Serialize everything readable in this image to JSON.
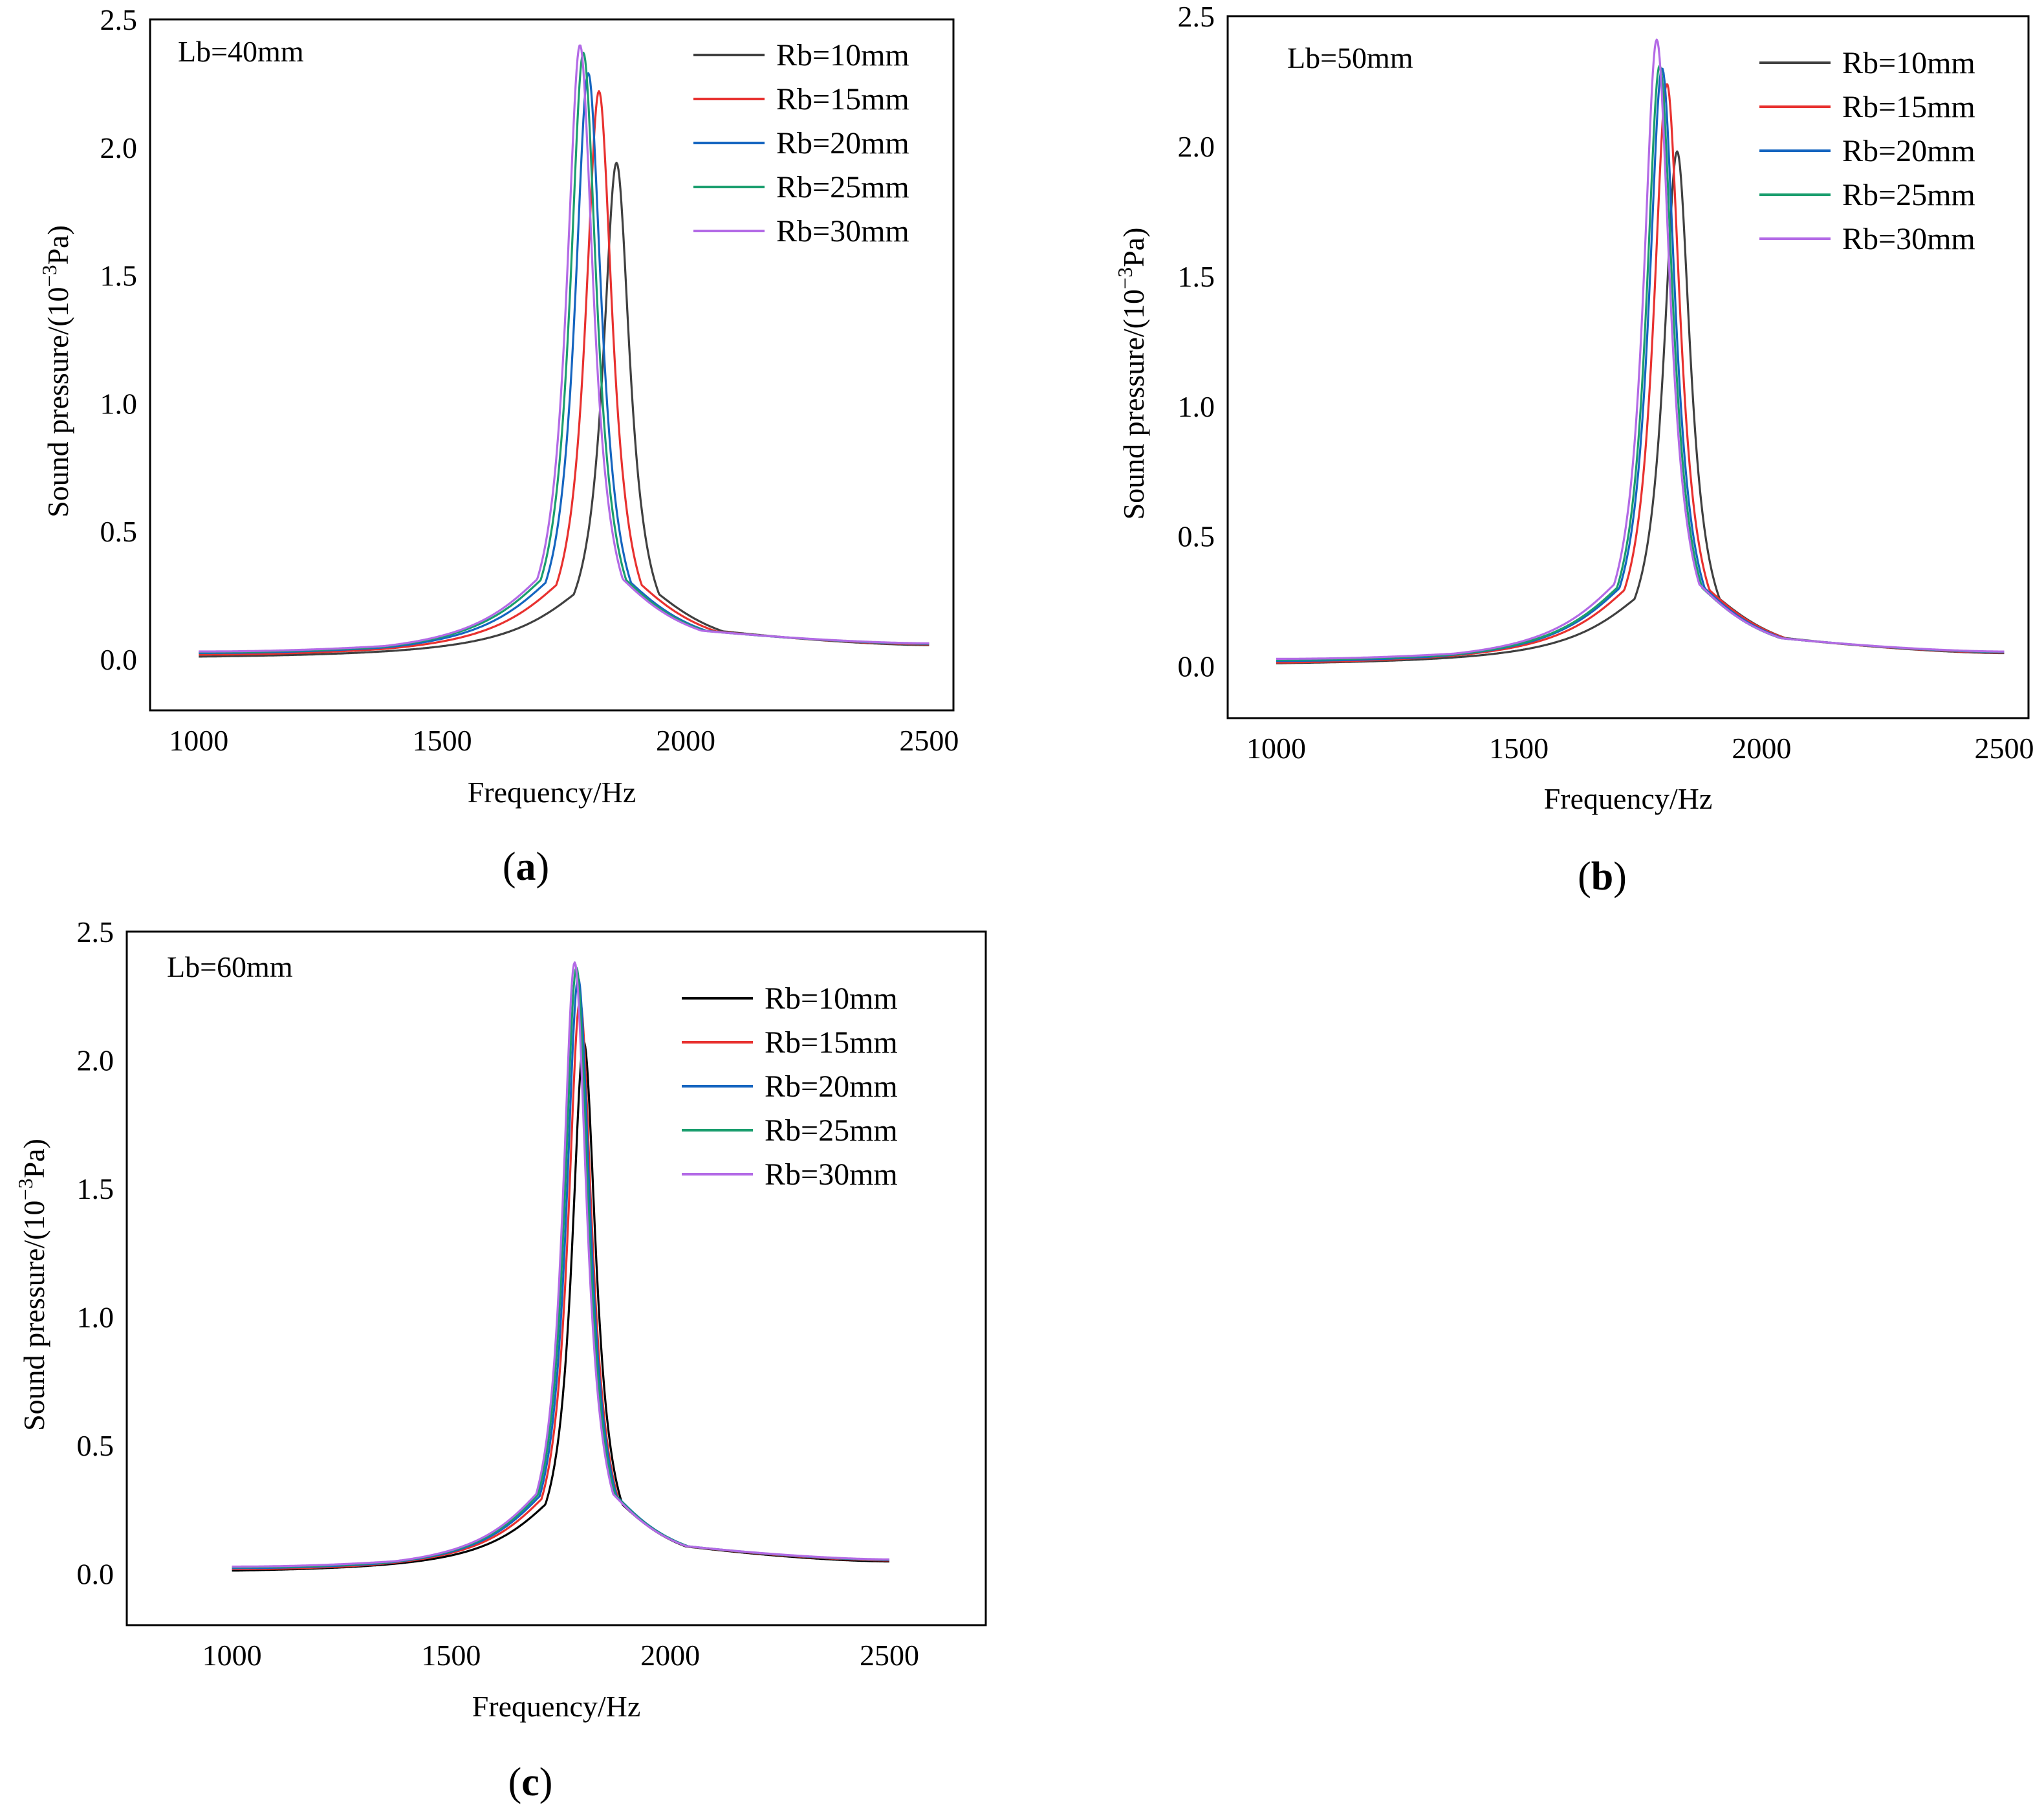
{
  "chart_data": [
    {
      "type": "line",
      "caption": "a",
      "annotation": "Lb=40mm",
      "xlabel": "Frequency/Hz",
      "ylabel_prefix": "Sound pressure/(10",
      "ylabel_exp": "−3",
      "ylabel_suffix": "Pa)",
      "xlim": [
        900,
        2550
      ],
      "ylim": [
        -0.2,
        2.5
      ],
      "xticks": [
        1000,
        1500,
        2000,
        2500
      ],
      "yticks": [
        0.0,
        0.5,
        1.0,
        1.5,
        2.0,
        2.5
      ],
      "yticklabels": [
        "0.0",
        "0.5",
        "1.0",
        "1.5",
        "2.0",
        "2.5"
      ],
      "x_range": [
        1000,
        2500
      ],
      "series": [
        {
          "name": "Rb=10mm",
          "color": "#404040",
          "peak_freq": 1858,
          "peak": 1.94,
          "base": 0.006,
          "tail": 0.055
        },
        {
          "name": "Rb=15mm",
          "color": "#e8312f",
          "peak_freq": 1822,
          "peak": 2.22,
          "base": 0.018,
          "tail": 0.058
        },
        {
          "name": "Rb=20mm",
          "color": "#1565c0",
          "peak_freq": 1800,
          "peak": 2.29,
          "base": 0.024,
          "tail": 0.06
        },
        {
          "name": "Rb=25mm",
          "color": "#1a9e6e",
          "peak_freq": 1790,
          "peak": 2.37,
          "base": 0.027,
          "tail": 0.061
        },
        {
          "name": "Rb=30mm",
          "color": "#b36ae6",
          "peak_freq": 1783,
          "peak": 2.4,
          "base": 0.03,
          "tail": 0.062
        }
      ]
    },
    {
      "type": "line",
      "caption": "b",
      "annotation": "Lb=50mm",
      "xlabel": "Frequency/Hz",
      "ylabel_prefix": "Sound pressure/(10",
      "ylabel_exp": "−3",
      "ylabel_suffix": "Pa)",
      "xlim": [
        900,
        2550
      ],
      "ylim": [
        -0.2,
        2.5
      ],
      "xticks": [
        1000,
        1500,
        2000,
        2500
      ],
      "yticks": [
        0.0,
        0.5,
        1.0,
        1.5,
        2.0,
        2.5
      ],
      "yticklabels": [
        "0.0",
        "0.5",
        "1.0",
        "1.5",
        "2.0",
        "2.5"
      ],
      "x_range": [
        1000,
        2500
      ],
      "series": [
        {
          "name": "Rb=10mm",
          "color": "#404040",
          "peak_freq": 1826,
          "peak": 1.98,
          "base": 0.004,
          "tail": 0.05
        },
        {
          "name": "Rb=15mm",
          "color": "#e8312f",
          "peak_freq": 1805,
          "peak": 2.24,
          "base": 0.014,
          "tail": 0.052
        },
        {
          "name": "Rb=20mm",
          "color": "#1565c0",
          "peak_freq": 1795,
          "peak": 2.3,
          "base": 0.02,
          "tail": 0.054
        },
        {
          "name": "Rb=25mm",
          "color": "#1a9e6e",
          "peak_freq": 1790,
          "peak": 2.31,
          "base": 0.024,
          "tail": 0.055
        },
        {
          "name": "Rb=30mm",
          "color": "#b36ae6",
          "peak_freq": 1784,
          "peak": 2.41,
          "base": 0.028,
          "tail": 0.056
        }
      ]
    },
    {
      "type": "line",
      "caption": "c",
      "annotation": "Lb=60mm",
      "xlabel": "Frequency/Hz",
      "ylabel_prefix": "Sound pressure/(10",
      "ylabel_exp": "−3",
      "ylabel_suffix": "Pa)",
      "xlim": [
        760,
        2720
      ],
      "ylim": [
        -0.2,
        2.5
      ],
      "xticks": [
        1000,
        1500,
        2000,
        2500
      ],
      "yticks": [
        0.0,
        0.5,
        1.0,
        1.5,
        2.0,
        2.5
      ],
      "yticklabels": [
        "0.0",
        "0.5",
        "1.0",
        "1.5",
        "2.0",
        "2.5"
      ],
      "x_range": [
        1000,
        2500
      ],
      "series": [
        {
          "name": "Rb=10mm",
          "color": "#000000",
          "peak_freq": 1803,
          "peak": 2.07,
          "base": 0.01,
          "tail": 0.048
        },
        {
          "name": "Rb=15mm",
          "color": "#e8312f",
          "peak_freq": 1794,
          "peak": 2.23,
          "base": 0.018,
          "tail": 0.052
        },
        {
          "name": "Rb=20mm",
          "color": "#1565c0",
          "peak_freq": 1790,
          "peak": 2.32,
          "base": 0.022,
          "tail": 0.054
        },
        {
          "name": "Rb=25mm",
          "color": "#1a9e6e",
          "peak_freq": 1786,
          "peak": 2.36,
          "base": 0.025,
          "tail": 0.055
        },
        {
          "name": "Rb=30mm",
          "color": "#b36ae6",
          "peak_freq": 1782,
          "peak": 2.38,
          "base": 0.028,
          "tail": 0.056
        }
      ]
    }
  ]
}
